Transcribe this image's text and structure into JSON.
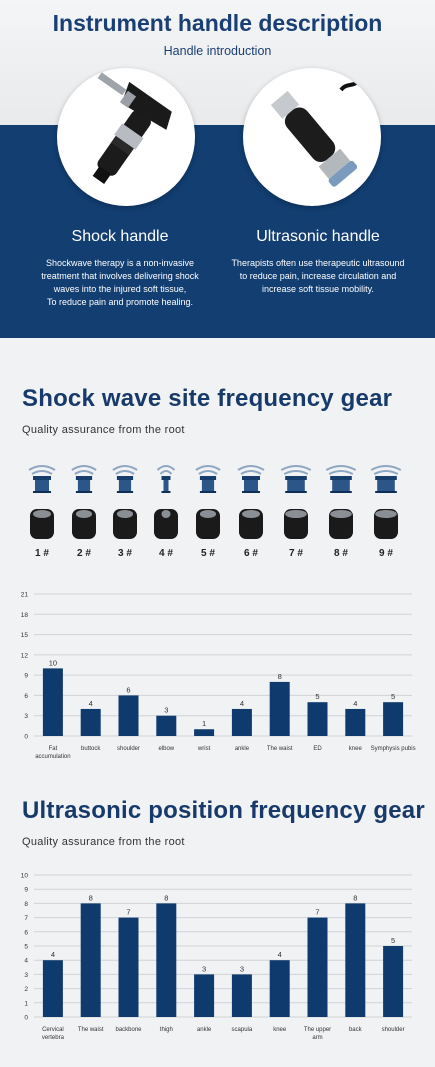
{
  "header": {
    "title": "Instrument handle description",
    "subtitle": "Handle introduction"
  },
  "handles": [
    {
      "name": "Shock handle",
      "description": [
        "Shockwave therapy is a non-invasive",
        "treatment that involves delivering shock",
        "waves into the injured soft tissue,",
        "To reduce pain and promote healing."
      ]
    },
    {
      "name": "Ultrasonic handle",
      "description": [
        "Therapists often use therapeutic ultrasound",
        "to reduce pain, increase circulation and",
        "increase soft tissue mobility."
      ]
    }
  ],
  "shock_section": {
    "title": "Shock wave site frequency gear",
    "subtitle": "Quality assurance from the root",
    "gears": [
      "1 #",
      "2 #",
      "3 #",
      "4 #",
      "5 #",
      "6 #",
      "7 #",
      "8 #",
      "9 #"
    ]
  },
  "ultra_section": {
    "title": "Ultrasonic position frequency gear",
    "subtitle": "Quality assurance from the root"
  },
  "colors": {
    "navy": "#123e72",
    "bar": "#0f3a6e"
  },
  "chart_data": [
    {
      "type": "bar",
      "categories": [
        [
          "Fat",
          "accumulation"
        ],
        [
          "buttock"
        ],
        [
          "shoulder"
        ],
        [
          "elbow"
        ],
        [
          "wrist"
        ],
        [
          "ankle"
        ],
        [
          "The waist"
        ],
        [
          "ED"
        ],
        [
          "knee"
        ],
        [
          "Symphysis pubis"
        ]
      ],
      "values": [
        10,
        4,
        6,
        3,
        1,
        4,
        8,
        5,
        4,
        5
      ],
      "yticks": [
        0,
        3,
        6,
        9,
        12,
        15,
        18,
        21
      ],
      "ylim": [
        0,
        21
      ],
      "grid": true
    },
    {
      "type": "bar",
      "categories": [
        [
          "Cervical",
          "vertebra"
        ],
        [
          "The waist"
        ],
        [
          "backbone"
        ],
        [
          "thigh"
        ],
        [
          "ankle"
        ],
        [
          "scapula"
        ],
        [
          "knee"
        ],
        [
          "The upper",
          "arm"
        ],
        [
          "back"
        ],
        [
          "shoulder"
        ]
      ],
      "values": [
        4,
        8,
        7,
        8,
        3,
        3,
        4,
        7,
        8,
        5
      ],
      "yticks": [
        0,
        1,
        2,
        3,
        4,
        5,
        6,
        7,
        8,
        9,
        10
      ],
      "ylim": [
        0,
        10
      ],
      "grid": true
    }
  ]
}
